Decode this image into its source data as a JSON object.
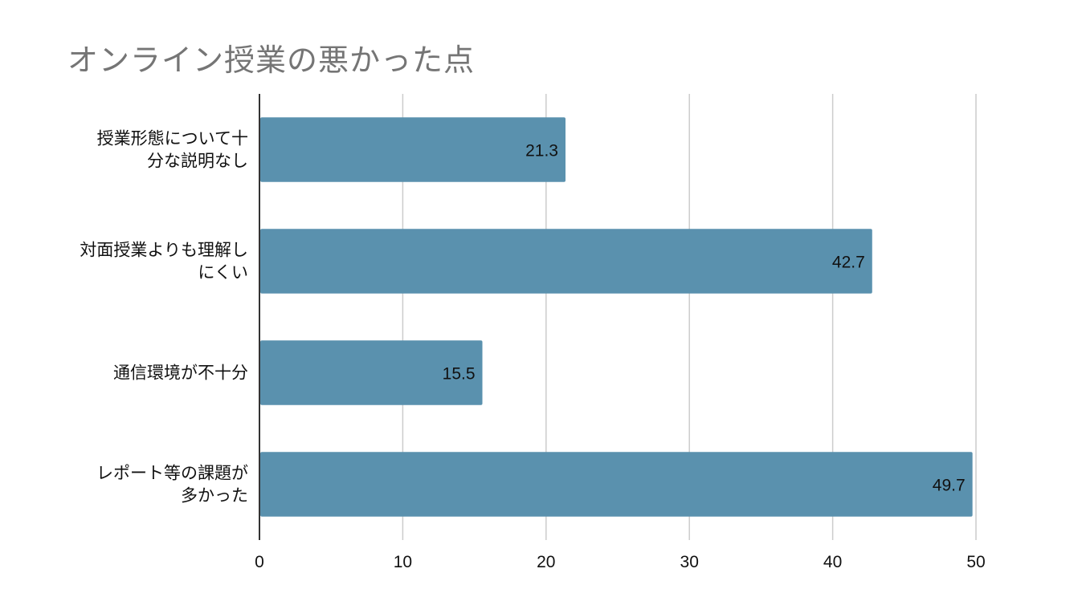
{
  "chart_data": {
    "type": "bar",
    "orientation": "horizontal",
    "title": "オンライン授業の悪かった点",
    "categories": [
      [
        "授業形態について十",
        "分な説明なし"
      ],
      [
        "対面授業よりも理解し",
        "にくい"
      ],
      [
        "通信環境が不十分"
      ],
      [
        "レポート等の課題が",
        "多かった"
      ]
    ],
    "values": [
      21.3,
      42.7,
      15.5,
      49.7
    ],
    "data_labels": [
      "21.3",
      "42.7",
      "15.5",
      "49.7"
    ],
    "xlim": [
      0,
      50
    ],
    "xticks": [
      0,
      10,
      20,
      30,
      40,
      50
    ],
    "grid": true,
    "bar_color": "#5a91ae",
    "xlabel": "",
    "ylabel": ""
  }
}
